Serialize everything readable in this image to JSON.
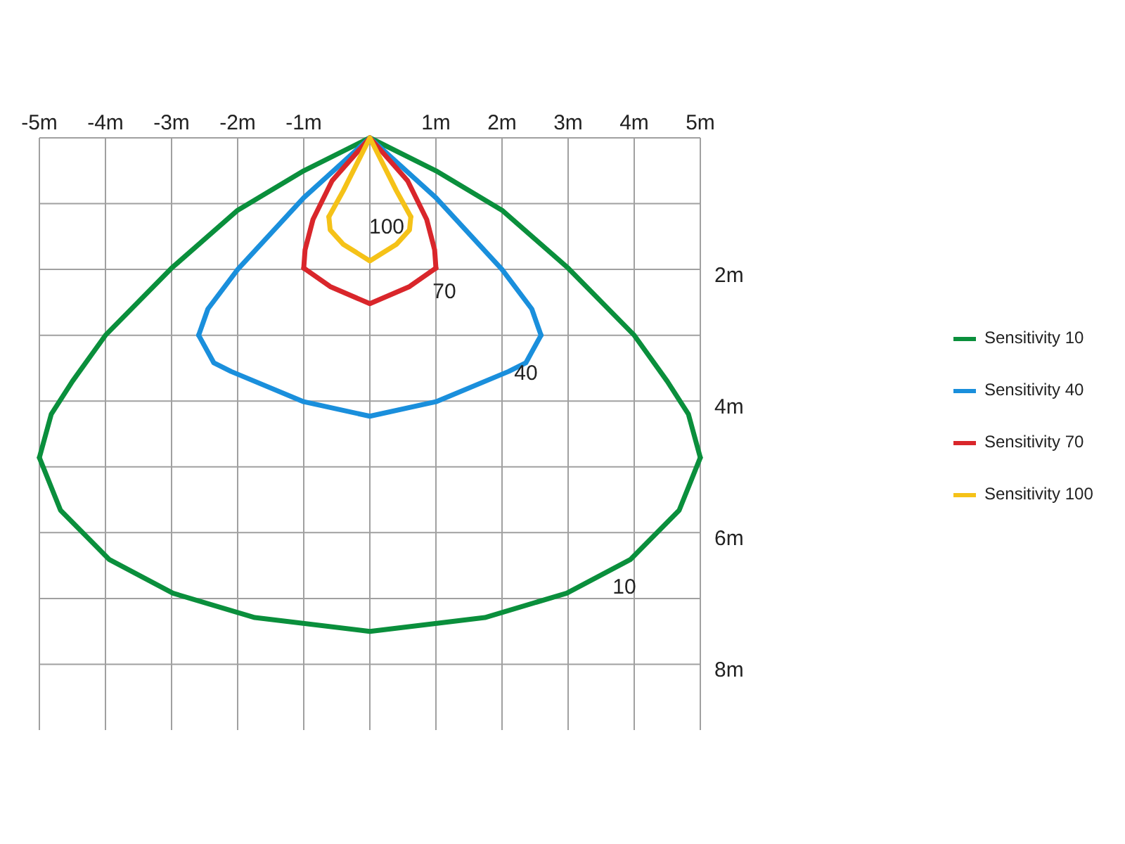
{
  "chart_data": {
    "type": "line",
    "xlim": [
      -5,
      5
    ],
    "ylim": [
      9,
      0
    ],
    "xticks": [
      {
        "value": -5,
        "label": "-5m"
      },
      {
        "value": -4,
        "label": "-4m"
      },
      {
        "value": -3,
        "label": "-3m"
      },
      {
        "value": -2,
        "label": "-2m"
      },
      {
        "value": -1,
        "label": "-1m"
      },
      {
        "value": 0,
        "label": null
      },
      {
        "value": 1,
        "label": "1m"
      },
      {
        "value": 2,
        "label": "2m"
      },
      {
        "value": 3,
        "label": "3m"
      },
      {
        "value": 4,
        "label": "4m"
      },
      {
        "value": 5,
        "label": "5m"
      }
    ],
    "yticks": [
      {
        "value": 0,
        "label": null
      },
      {
        "value": 1,
        "label": null
      },
      {
        "value": 2,
        "label": "2m"
      },
      {
        "value": 3,
        "label": null
      },
      {
        "value": 4,
        "label": "4m"
      },
      {
        "value": 5,
        "label": null
      },
      {
        "value": 6,
        "label": "6m"
      },
      {
        "value": 7,
        "label": null
      },
      {
        "value": 8,
        "label": "8m"
      }
    ],
    "grid": true,
    "legend": "right",
    "marker": "none",
    "line_style": "solid",
    "series": [
      {
        "name": "Sensitivity 10",
        "color": "#0a8f3c",
        "x": [
          -5,
          -4.82,
          -4.5,
          -4,
          -3,
          -2,
          -1,
          0,
          1,
          2,
          3,
          4,
          4.5,
          4.82,
          5
        ],
        "values": [
          4.86,
          4.2,
          3.7,
          3,
          1.98,
          1.1,
          0.5,
          0,
          0.5,
          1.1,
          1.98,
          3,
          3.7,
          4.2,
          4.86
        ]
      },
      {
        "color": "#0a8f3c",
        "x": [
          -5,
          -4.68,
          -3.94,
          -2.98,
          -1.74,
          0,
          1.74,
          2.98,
          3.94,
          4.68,
          5
        ],
        "values": [
          4.86,
          5.66,
          6.41,
          6.92,
          7.29,
          7.5,
          7.29,
          6.92,
          6.41,
          5.66,
          4.86
        ]
      },
      {
        "name": "Sensitivity 40",
        "color": "#1a8fdc",
        "x": [
          -2.59,
          -2.45,
          -2,
          -1,
          0,
          1,
          2,
          2.45,
          2.59
        ],
        "values": [
          3,
          2.6,
          2,
          0.91,
          0,
          0.91,
          2,
          2.6,
          3
        ]
      },
      {
        "color": "#1a8fdc",
        "x": [
          -2.59,
          -2.36,
          -2.1,
          -1,
          0,
          1,
          2.1,
          2.36,
          2.59
        ],
        "values": [
          3,
          3.42,
          3.55,
          4.01,
          4.23,
          4.01,
          3.55,
          3.42,
          3
        ]
      },
      {
        "name": "Sensitivity 70",
        "color": "#d9262b",
        "x": [
          -1,
          -0.98,
          -0.86,
          -0.57,
          0,
          0.57,
          0.86,
          0.98,
          1
        ],
        "values": [
          1.98,
          1.7,
          1.24,
          0.65,
          0,
          0.65,
          1.24,
          1.7,
          1.98
        ]
      },
      {
        "color": "#d9262b",
        "x": [
          -1,
          -0.6,
          0,
          0.6,
          1
        ],
        "values": [
          1.98,
          2.26,
          2.52,
          2.26,
          1.98
        ]
      },
      {
        "name": "Sensitivity 100",
        "color": "#f5c218",
        "x": [
          -0.62,
          -0.4,
          0,
          0.4,
          0.62
        ],
        "values": [
          1.2,
          0.8,
          0,
          0.8,
          1.2
        ]
      },
      {
        "color": "#f5c218",
        "x": [
          -0.62,
          -0.6,
          -0.4,
          0,
          0.4,
          0.6,
          0.62
        ],
        "values": [
          1.2,
          1.4,
          1.62,
          1.87,
          1.62,
          1.4,
          1.2
        ]
      }
    ],
    "annotations": [
      "100",
      "70",
      "40",
      "10"
    ]
  }
}
